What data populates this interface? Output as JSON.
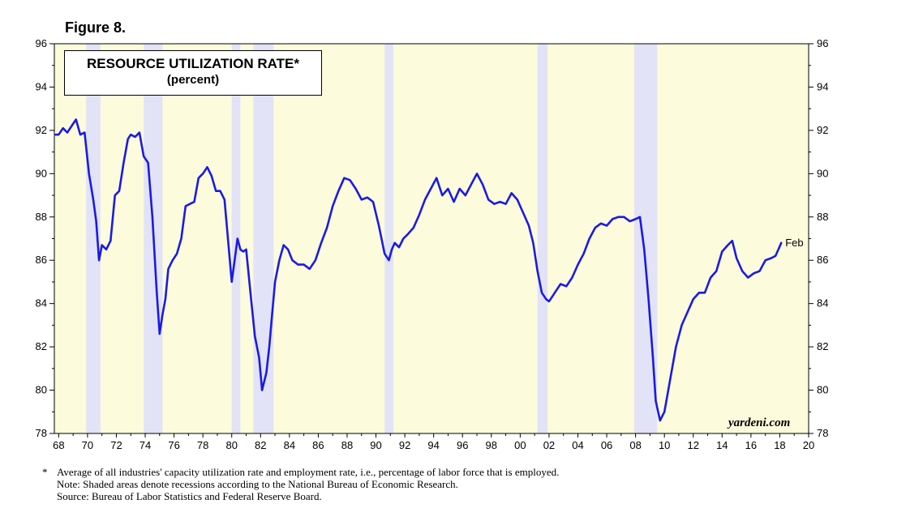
{
  "figure_label": "Figure 8.",
  "chart_data": {
    "type": "line",
    "title": "RESOURCE UTILIZATION RATE*",
    "subtitle": "(percent)",
    "xlim": [
      1967.7,
      2020
    ],
    "ylim": [
      78,
      96
    ],
    "y_ticks": [
      78,
      80,
      82,
      84,
      86,
      88,
      90,
      92,
      94,
      96
    ],
    "x_tick_labels": [
      "68",
      "70",
      "72",
      "74",
      "76",
      "78",
      "80",
      "82",
      "84",
      "86",
      "88",
      "90",
      "92",
      "94",
      "96",
      "98",
      "00",
      "02",
      "04",
      "06",
      "08",
      "10",
      "12",
      "14",
      "16",
      "18",
      "20"
    ],
    "x_tick_years": [
      1968,
      1970,
      1972,
      1974,
      1976,
      1978,
      1980,
      1982,
      1984,
      1986,
      1988,
      1990,
      1992,
      1994,
      1996,
      1998,
      2000,
      2002,
      2004,
      2006,
      2008,
      2010,
      2012,
      2014,
      2016,
      2018,
      2020
    ],
    "recessions": [
      [
        1969.9,
        1970.9
      ],
      [
        1973.9,
        1975.2
      ],
      [
        1980.0,
        1980.6
      ],
      [
        1981.5,
        1982.9
      ],
      [
        1990.6,
        1991.2
      ],
      [
        2001.2,
        2001.9
      ],
      [
        2007.9,
        2009.5
      ]
    ],
    "colors": {
      "background": "#fcfbdc",
      "recession": "#e2e3f6",
      "line": "#1a1ae6"
    },
    "series": [
      {
        "name": "Resource utilization rate",
        "x": [
          1967.8,
          1968.0,
          1968.3,
          1968.6,
          1968.9,
          1969.2,
          1969.5,
          1969.8,
          1970.1,
          1970.4,
          1970.6,
          1970.8,
          1971.0,
          1971.3,
          1971.6,
          1971.9,
          1972.2,
          1972.5,
          1972.8,
          1973.0,
          1973.3,
          1973.6,
          1973.9,
          1974.2,
          1974.5,
          1974.8,
          1975.0,
          1975.2,
          1975.4,
          1975.6,
          1975.9,
          1976.2,
          1976.5,
          1976.8,
          1977.1,
          1977.4,
          1977.7,
          1978.0,
          1978.3,
          1978.6,
          1978.9,
          1979.2,
          1979.5,
          1979.8,
          1980.0,
          1980.2,
          1980.4,
          1980.6,
          1980.8,
          1981.0,
          1981.3,
          1981.6,
          1981.9,
          1982.1,
          1982.4,
          1982.6,
          1982.8,
          1983.0,
          1983.3,
          1983.6,
          1983.9,
          1984.2,
          1984.6,
          1985.0,
          1985.4,
          1985.8,
          1986.2,
          1986.6,
          1987.0,
          1987.4,
          1987.8,
          1988.2,
          1988.6,
          1989.0,
          1989.4,
          1989.8,
          1990.2,
          1990.6,
          1990.9,
          1991.1,
          1991.3,
          1991.6,
          1991.9,
          1992.2,
          1992.6,
          1993.0,
          1993.4,
          1993.8,
          1994.2,
          1994.6,
          1995.0,
          1995.4,
          1995.8,
          1996.2,
          1996.6,
          1997.0,
          1997.4,
          1997.8,
          1998.2,
          1998.6,
          1999.0,
          1999.4,
          1999.8,
          2000.2,
          2000.6,
          2000.9,
          2001.2,
          2001.5,
          2001.8,
          2002.0,
          2002.2,
          2002.5,
          2002.8,
          2003.2,
          2003.6,
          2004.0,
          2004.4,
          2004.8,
          2005.2,
          2005.6,
          2006.0,
          2006.4,
          2006.8,
          2007.2,
          2007.6,
          2008.0,
          2008.3,
          2008.6,
          2008.9,
          2009.2,
          2009.4,
          2009.7,
          2010.0,
          2010.4,
          2010.8,
          2011.2,
          2011.6,
          2012.0,
          2012.4,
          2012.8,
          2013.2,
          2013.6,
          2014.0,
          2014.4,
          2014.7,
          2015.0,
          2015.4,
          2015.8,
          2016.2,
          2016.6,
          2017.0,
          2017.4,
          2017.7,
          2017.9,
          2018.1
        ],
        "values": [
          91.8,
          91.8,
          92.1,
          91.9,
          92.2,
          92.5,
          91.8,
          91.9,
          90.0,
          88.8,
          87.8,
          86.0,
          86.7,
          86.5,
          86.9,
          89.0,
          89.2,
          90.5,
          91.6,
          91.8,
          91.7,
          91.9,
          90.8,
          90.5,
          88.0,
          84.5,
          82.6,
          83.5,
          84.2,
          85.6,
          86.0,
          86.3,
          87.0,
          88.5,
          88.6,
          88.7,
          89.8,
          90.0,
          90.3,
          89.9,
          89.2,
          89.2,
          88.8,
          86.5,
          85.0,
          86.0,
          87.0,
          86.5,
          86.4,
          86.5,
          84.5,
          82.5,
          81.5,
          80.0,
          80.8,
          82.0,
          83.5,
          85.0,
          86.0,
          86.7,
          86.5,
          86.0,
          85.8,
          85.8,
          85.6,
          86.0,
          86.8,
          87.5,
          88.5,
          89.2,
          89.8,
          89.7,
          89.3,
          88.8,
          88.9,
          88.7,
          87.6,
          86.3,
          86.0,
          86.5,
          86.8,
          86.6,
          87.0,
          87.2,
          87.5,
          88.1,
          88.8,
          89.3,
          89.8,
          89.0,
          89.3,
          88.7,
          89.3,
          89.0,
          89.5,
          90.0,
          89.5,
          88.8,
          88.6,
          88.7,
          88.6,
          89.1,
          88.8,
          88.2,
          87.6,
          86.8,
          85.5,
          84.5,
          84.2,
          84.1,
          84.3,
          84.6,
          84.9,
          84.8,
          85.2,
          85.8,
          86.3,
          87.0,
          87.5,
          87.7,
          87.6,
          87.9,
          88.0,
          88.0,
          87.8,
          87.9,
          88.0,
          86.5,
          84.2,
          81.5,
          79.5,
          78.6,
          79.0,
          80.5,
          82.0,
          83.0,
          83.6,
          84.2,
          84.5,
          84.5,
          85.2,
          85.5,
          86.4,
          86.7,
          86.9,
          86.1,
          85.5,
          85.2,
          85.4,
          85.5,
          86.0,
          86.1,
          86.2,
          86.5,
          86.8
        ]
      }
    ],
    "end_label": "Feb"
  },
  "watermark": "yardeni.com",
  "footnotes": {
    "asterisk": "*",
    "definition": "Average of all industries' capacity utilization rate and employment rate, i.e., percentage of labor force that is employed.",
    "note": "Note: Shaded areas denote recessions according to the National Bureau of Economic Research.",
    "source": "Source: Bureau of Labor Statistics and Federal Reserve Board."
  }
}
